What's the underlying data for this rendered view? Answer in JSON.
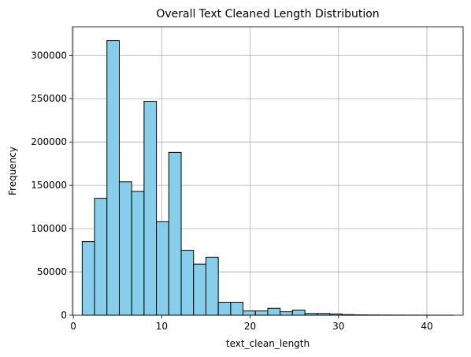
{
  "chart_data": {
    "type": "bar",
    "subtype": "histogram",
    "title": "Overall Text Cleaned Length Distribution",
    "xlabel": "text_clean_length",
    "ylabel": "Frequency",
    "xlim": [
      -0.1,
      44.1
    ],
    "ylim": [
      0,
      333000
    ],
    "xticks": [
      0,
      10,
      20,
      30,
      40
    ],
    "yticks": [
      0,
      50000,
      100000,
      150000,
      200000,
      250000,
      300000
    ],
    "grid": true,
    "bar_color": "#87ceeb",
    "edge_color": "#000000",
    "bin_start": 1,
    "bin_width": 1.4,
    "values": [
      85000,
      135000,
      317000,
      154000,
      143000,
      247000,
      108000,
      188000,
      75000,
      59000,
      67000,
      15000,
      15000,
      5000,
      5000,
      8000,
      4000,
      6000,
      2000,
      2000,
      1500,
      700,
      400,
      300,
      200,
      150,
      100,
      80,
      50,
      30
    ]
  }
}
